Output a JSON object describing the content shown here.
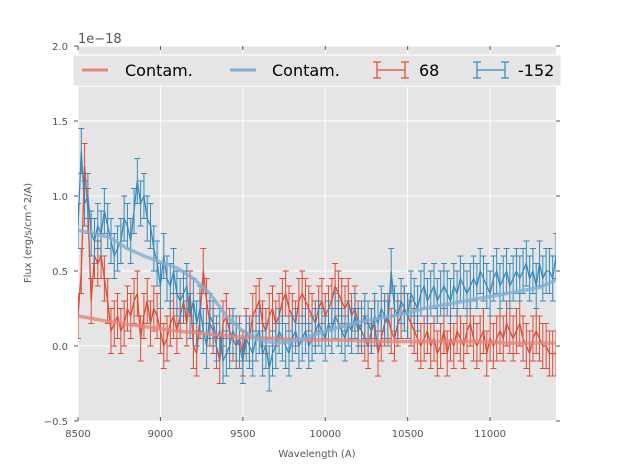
{
  "chart_data": {
    "type": "line",
    "title": "",
    "xlabel": "Wavelength (A)",
    "ylabel": "Flux (erg/s/cm^2/A)",
    "y_offset_label": "1e−18",
    "xlim": [
      8500,
      11400
    ],
    "ylim": [
      -0.5,
      2.0
    ],
    "xticks": [
      8500,
      9000,
      9500,
      10000,
      10500,
      11000
    ],
    "xtick_labels": [
      "8500",
      "9000",
      "9500",
      "10000",
      "10500",
      "11000"
    ],
    "yticks": [
      -0.5,
      0.0,
      0.5,
      1.0,
      1.5,
      2.0
    ],
    "ytick_labels": [
      "−0.5",
      "0.0",
      "0.5",
      "1.0",
      "1.5",
      "2.0"
    ],
    "grid": true,
    "background": "#e5e5e5",
    "legend": {
      "placement": "top",
      "entries": [
        {
          "label": "Contam.",
          "kind": "line",
          "color": "#e8857a"
        },
        {
          "label": "Contam.",
          "kind": "line",
          "color": "#7fb0d4"
        },
        {
          "label": "68",
          "kind": "errorbar",
          "color": "#e24a33"
        },
        {
          "label": "-152",
          "kind": "errorbar",
          "color": "#348abd"
        }
      ]
    },
    "series": [
      {
        "name": "68",
        "kind": "errorbar",
        "color": "#e24a33",
        "x": [
          8500,
          8520,
          8540,
          8560,
          8580,
          8600,
          8620,
          8640,
          8660,
          8680,
          8700,
          8720,
          8740,
          8760,
          8780,
          8800,
          8820,
          8840,
          8860,
          8880,
          8900,
          8920,
          8940,
          8960,
          8980,
          9000,
          9020,
          9040,
          9060,
          9080,
          9100,
          9120,
          9140,
          9160,
          9180,
          9200,
          9220,
          9240,
          9260,
          9280,
          9300,
          9320,
          9340,
          9360,
          9380,
          9400,
          9420,
          9440,
          9460,
          9480,
          9500,
          9520,
          9540,
          9560,
          9580,
          9600,
          9620,
          9640,
          9660,
          9680,
          9700,
          9720,
          9740,
          9760,
          9780,
          9800,
          9820,
          9840,
          9860,
          9880,
          9900,
          9920,
          9940,
          9960,
          9980,
          10000,
          10020,
          10040,
          10060,
          10080,
          10100,
          10120,
          10140,
          10160,
          10180,
          10200,
          10220,
          10240,
          10260,
          10280,
          10300,
          10320,
          10340,
          10360,
          10380,
          10400,
          10420,
          10440,
          10460,
          10480,
          10500,
          10520,
          10540,
          10560,
          10580,
          10600,
          10620,
          10640,
          10660,
          10680,
          10700,
          10720,
          10740,
          10760,
          10780,
          10800,
          10820,
          10840,
          10860,
          10880,
          10900,
          10920,
          10940,
          10960,
          10980,
          11000,
          11020,
          11040,
          11060,
          11080,
          11100,
          11120,
          11140,
          11160,
          11180,
          11200,
          11220,
          11240,
          11260,
          11280,
          11300,
          11320,
          11340,
          11360,
          11380,
          11400
        ],
        "y": [
          0.2,
          0.5,
          1.2,
          0.9,
          0.3,
          0.6,
          0.55,
          0.6,
          0.45,
          0.3,
          0.1,
          0.15,
          0.2,
          0.1,
          0.15,
          0.25,
          0.2,
          0.3,
          0.35,
          0.05,
          0.2,
          0.3,
          0.15,
          0.25,
          0.2,
          0.1,
          0.0,
          0.05,
          0.15,
          0.2,
          0.1,
          0.2,
          0.3,
          0.15,
          0.35,
          0.0,
          -0.05,
          0.2,
          0.5,
          0.3,
          0.15,
          0.1,
          0.0,
          -0.1,
          0.15,
          0.2,
          0.1,
          0.05,
          0.0,
          0.05,
          -0.05,
          0.1,
          0.05,
          0.2,
          0.25,
          0.3,
          0.15,
          0.1,
          0.2,
          0.25,
          0.15,
          0.2,
          0.3,
          0.35,
          0.25,
          0.2,
          0.15,
          0.3,
          0.35,
          0.3,
          0.25,
          0.2,
          0.15,
          0.25,
          0.3,
          0.2,
          0.25,
          0.3,
          0.4,
          0.35,
          0.3,
          0.25,
          0.3,
          0.2,
          0.25,
          0.15,
          0.1,
          0.05,
          0.0,
          0.1,
          0.15,
          -0.05,
          0.05,
          0.15,
          0.2,
          0.1,
          0.05,
          0.15,
          0.2,
          0.25,
          0.2,
          0.15,
          0.1,
          0.05,
          0.0,
          0.05,
          0.1,
          0.0,
          0.05,
          -0.05,
          0.0,
          0.1,
          -0.05,
          0.05,
          0.0,
          0.1,
          0.05,
          0.0,
          0.1,
          0.15,
          0.05,
          0.0,
          0.05,
          0.1,
          -0.05,
          0.05,
          0.0,
          0.05,
          0.1,
          0.05,
          0.15,
          0.1,
          0.05,
          0.1,
          0.15,
          0.05,
          0.0,
          -0.05,
          0.05,
          0.1,
          0.05,
          0.0,
          0.0,
          -0.05,
          -0.05,
          -0.05
        ],
        "yerr": 0.15
      },
      {
        "name": "-152",
        "kind": "errorbar",
        "color": "#348abd",
        "x": [
          8500,
          8520,
          8540,
          8560,
          8580,
          8600,
          8620,
          8640,
          8660,
          8680,
          8700,
          8720,
          8740,
          8760,
          8780,
          8800,
          8820,
          8840,
          8860,
          8880,
          8900,
          8920,
          8940,
          8960,
          8980,
          9000,
          9020,
          9040,
          9060,
          9080,
          9100,
          9120,
          9140,
          9160,
          9180,
          9200,
          9220,
          9240,
          9260,
          9280,
          9300,
          9320,
          9340,
          9360,
          9380,
          9400,
          9420,
          9440,
          9460,
          9480,
          9500,
          9520,
          9540,
          9560,
          9580,
          9600,
          9620,
          9640,
          9660,
          9680,
          9700,
          9720,
          9740,
          9760,
          9780,
          9800,
          9820,
          9840,
          9860,
          9880,
          9900,
          9920,
          9940,
          9960,
          9980,
          10000,
          10020,
          10040,
          10060,
          10080,
          10100,
          10120,
          10140,
          10160,
          10180,
          10200,
          10220,
          10240,
          10260,
          10280,
          10300,
          10320,
          10340,
          10360,
          10380,
          10400,
          10420,
          10440,
          10460,
          10480,
          10500,
          10520,
          10540,
          10560,
          10580,
          10600,
          10620,
          10640,
          10660,
          10680,
          10700,
          10720,
          10740,
          10760,
          10780,
          10800,
          10820,
          10840,
          10860,
          10880,
          10900,
          10920,
          10940,
          10960,
          10980,
          11000,
          11020,
          11040,
          11060,
          11080,
          11100,
          11120,
          11140,
          11160,
          11180,
          11200,
          11220,
          11240,
          11260,
          11280,
          11300,
          11320,
          11340,
          11360,
          11380,
          11400
        ],
        "y": [
          0.8,
          1.3,
          0.95,
          1.0,
          0.75,
          0.7,
          0.8,
          0.75,
          0.9,
          0.8,
          0.7,
          0.6,
          0.65,
          0.7,
          0.85,
          0.8,
          0.7,
          0.9,
          1.1,
          0.95,
          1.0,
          0.85,
          0.8,
          0.65,
          0.55,
          0.4,
          0.6,
          0.45,
          0.4,
          0.5,
          0.35,
          0.3,
          0.35,
          0.4,
          0.2,
          0.3,
          0.15,
          0.25,
          0.1,
          0.0,
          0.2,
          0.15,
          0.05,
          0.1,
          -0.1,
          -0.05,
          0.0,
          0.1,
          0.05,
          0.0,
          -0.1,
          0.05,
          0.0,
          -0.05,
          0.05,
          0.1,
          -0.05,
          0.0,
          -0.15,
          -0.05,
          0.0,
          0.1,
          0.05,
          0.0,
          -0.05,
          0.05,
          0.1,
          0.0,
          0.05,
          0.1,
          0.0,
          0.05,
          0.1,
          0.15,
          0.1,
          0.05,
          0.15,
          0.1,
          0.2,
          0.15,
          0.1,
          0.05,
          0.15,
          0.1,
          0.2,
          0.1,
          0.15,
          0.2,
          0.15,
          0.1,
          0.2,
          0.15,
          0.25,
          0.2,
          0.15,
          0.5,
          0.25,
          0.2,
          0.3,
          0.25,
          0.2,
          0.35,
          0.3,
          0.25,
          0.35,
          0.4,
          0.3,
          0.35,
          0.4,
          0.3,
          0.35,
          0.4,
          0.35,
          0.3,
          0.4,
          0.35,
          0.45,
          0.4,
          0.35,
          0.4,
          0.45,
          0.4,
          0.5,
          0.45,
          0.4,
          0.35,
          0.45,
          0.5,
          0.4,
          0.45,
          0.5,
          0.4,
          0.45,
          0.5,
          0.45,
          0.5,
          0.55,
          0.45,
          0.5,
          0.4,
          0.55,
          0.45,
          0.5,
          0.5,
          0.45,
          0.6
        ],
        "yerr": 0.15
      },
      {
        "name": "Contam. (68)",
        "kind": "line",
        "color": "#e8857a",
        "x": [
          8500,
          8700,
          8900,
          9100,
          9300,
          9500,
          9700,
          9900,
          10100,
          10300,
          10500,
          10700,
          10900,
          11100,
          11300,
          11400
        ],
        "y": [
          0.2,
          0.16,
          0.13,
          0.1,
          0.08,
          0.06,
          0.05,
          0.04,
          0.04,
          0.03,
          0.03,
          0.03,
          0.03,
          0.02,
          0.02,
          0.02
        ]
      },
      {
        "name": "Contam. (-152)",
        "kind": "line",
        "color": "#7fb0d4",
        "x": [
          8500,
          8600,
          8700,
          8800,
          8900,
          9000,
          9100,
          9200,
          9300,
          9400,
          9500,
          9600,
          9700,
          9800,
          9900,
          10000,
          10100,
          10200,
          10300,
          10400,
          10500,
          10600,
          10700,
          10800,
          10900,
          11000,
          11100,
          11200,
          11300,
          11400
        ],
        "y": [
          0.77,
          0.75,
          0.72,
          0.65,
          0.6,
          0.56,
          0.52,
          0.45,
          0.35,
          0.2,
          0.1,
          0.04,
          0.02,
          0.03,
          0.06,
          0.1,
          0.13,
          0.16,
          0.18,
          0.2,
          0.22,
          0.25,
          0.27,
          0.29,
          0.31,
          0.33,
          0.35,
          0.37,
          0.39,
          0.44
        ]
      }
    ]
  }
}
